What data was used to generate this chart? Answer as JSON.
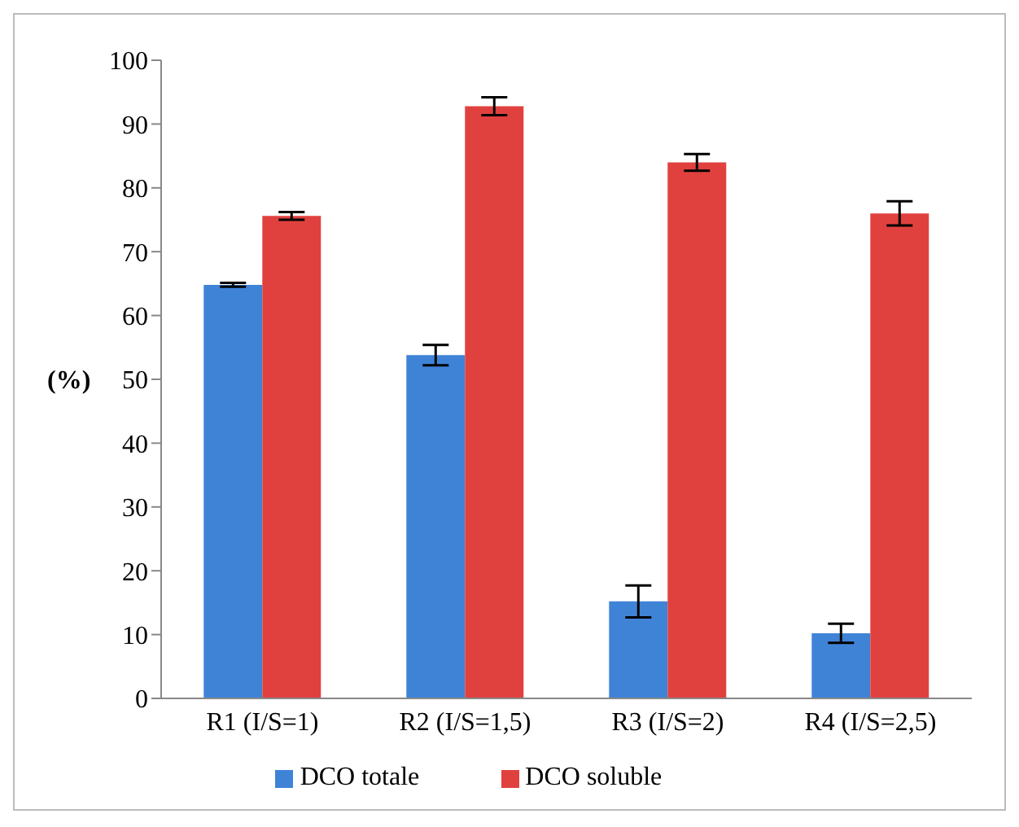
{
  "chart_data": {
    "type": "bar",
    "ylabel": "(%)",
    "categories": [
      "R1 (I/S=1)",
      "R2 (I/S=1,5)",
      "R3 (I/S=2)",
      "R4 (I/S=2,5)"
    ],
    "series": [
      {
        "name": "DCO totale",
        "color": "#3f83d7",
        "values": [
          64.8,
          53.8,
          15.2,
          10.2
        ],
        "errors": [
          0.3,
          1.6,
          2.5,
          1.5
        ]
      },
      {
        "name": "DCO soluble",
        "color": "#e0413f",
        "values": [
          75.6,
          92.8,
          84,
          76
        ],
        "errors": [
          0.6,
          1.4,
          1.3,
          1.9
        ]
      }
    ],
    "ylim": [
      0,
      100
    ],
    "yticks": [
      0,
      10,
      20,
      30,
      40,
      50,
      60,
      70,
      80,
      90,
      100
    ],
    "grid": false,
    "legend": "bottom"
  }
}
